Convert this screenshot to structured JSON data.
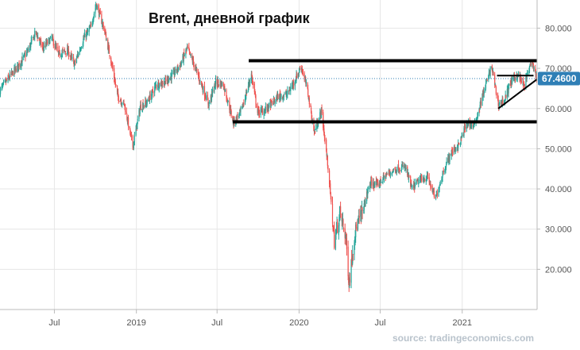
{
  "chart_data": {
    "type": "candlestick",
    "title": "Brent, дневной график",
    "source": "source: tradingeconomics.com",
    "y_axis_position": "right",
    "ylim": [
      10,
      87
    ],
    "xlim": [
      "2018-03-01",
      "2021-06-18"
    ],
    "grid": true,
    "y_ticks": [
      {
        "value": 80,
        "label": "80.000"
      },
      {
        "value": 70,
        "label": "70.000"
      },
      {
        "value": 60,
        "label": "60.000"
      },
      {
        "value": 50,
        "label": "50.000"
      },
      {
        "value": 40,
        "label": "40.000"
      },
      {
        "value": 30,
        "label": "30.000"
      },
      {
        "value": 20,
        "label": "20.000"
      }
    ],
    "x_ticks": [
      {
        "date": "2018-07-01",
        "label": "Jul"
      },
      {
        "date": "2019-01-01",
        "label": "2019"
      },
      {
        "date": "2019-07-01",
        "label": "Jul"
      },
      {
        "date": "2020-01-01",
        "label": "2020"
      },
      {
        "date": "2020-07-01",
        "label": "Jul"
      },
      {
        "date": "2021-01-01",
        "label": "2021"
      }
    ],
    "current_price": {
      "value": 67.46,
      "label": "67.4600"
    },
    "colors": {
      "up": "#26a69a",
      "down": "#ef5350",
      "price_label_bg": "#2f7fb6",
      "price_line": "#2f7fb6",
      "grid": "#e6e6e6",
      "annotation": "#000000"
    },
    "close_path": [
      [
        "2018-03-01",
        64.5
      ],
      [
        "2018-03-20",
        67.5
      ],
      [
        "2018-04-10",
        70.5
      ],
      [
        "2018-05-01",
        74.0
      ],
      [
        "2018-05-20",
        79.0
      ],
      [
        "2018-06-05",
        75.0
      ],
      [
        "2018-06-25",
        77.5
      ],
      [
        "2018-07-10",
        73.5
      ],
      [
        "2018-07-30",
        74.5
      ],
      [
        "2018-08-15",
        71.0
      ],
      [
        "2018-09-05",
        77.5
      ],
      [
        "2018-09-20",
        80.0
      ],
      [
        "2018-10-03",
        86.0
      ],
      [
        "2018-10-20",
        80.0
      ],
      [
        "2018-11-05",
        72.0
      ],
      [
        "2018-11-20",
        63.0
      ],
      [
        "2018-12-05",
        61.0
      ],
      [
        "2018-12-24",
        50.5
      ],
      [
        "2019-01-10",
        60.5
      ],
      [
        "2019-01-25",
        61.5
      ],
      [
        "2019-02-15",
        66.0
      ],
      [
        "2019-03-05",
        66.5
      ],
      [
        "2019-03-25",
        68.5
      ],
      [
        "2019-04-10",
        71.0
      ],
      [
        "2019-04-25",
        75.0
      ],
      [
        "2019-05-10",
        71.0
      ],
      [
        "2019-05-30",
        65.0
      ],
      [
        "2019-06-12",
        61.0
      ],
      [
        "2019-06-28",
        66.5
      ],
      [
        "2019-07-15",
        66.0
      ],
      [
        "2019-08-07",
        56.5
      ],
      [
        "2019-08-25",
        59.5
      ],
      [
        "2019-09-16",
        68.5
      ],
      [
        "2019-09-30",
        59.0
      ],
      [
        "2019-10-15",
        59.5
      ],
      [
        "2019-10-30",
        61.0
      ],
      [
        "2019-11-15",
        63.0
      ],
      [
        "2019-12-05",
        63.5
      ],
      [
        "2019-12-20",
        66.5
      ],
      [
        "2020-01-06",
        70.5
      ],
      [
        "2020-01-20",
        64.5
      ],
      [
        "2020-02-04",
        54.0
      ],
      [
        "2020-02-20",
        59.5
      ],
      [
        "2020-03-06",
        45.5
      ],
      [
        "2020-03-20",
        27.0
      ],
      [
        "2020-04-02",
        34.0
      ],
      [
        "2020-04-15",
        28.0
      ],
      [
        "2020-04-22",
        16.5
      ],
      [
        "2020-05-05",
        29.0
      ],
      [
        "2020-05-25",
        35.5
      ],
      [
        "2020-06-08",
        41.5
      ],
      [
        "2020-06-25",
        41.0
      ],
      [
        "2020-07-15",
        43.5
      ],
      [
        "2020-08-05",
        45.0
      ],
      [
        "2020-08-26",
        45.5
      ],
      [
        "2020-09-10",
        40.0
      ],
      [
        "2020-09-25",
        42.0
      ],
      [
        "2020-10-15",
        43.0
      ],
      [
        "2020-11-02",
        37.5
      ],
      [
        "2020-11-20",
        44.5
      ],
      [
        "2020-12-07",
        49.0
      ],
      [
        "2020-12-25",
        51.0
      ],
      [
        "2021-01-12",
        56.5
      ],
      [
        "2021-01-28",
        55.5
      ],
      [
        "2021-02-15",
        63.0
      ],
      [
        "2021-03-08",
        70.5
      ],
      [
        "2021-03-23",
        61.0
      ],
      [
        "2021-04-05",
        62.0
      ],
      [
        "2021-04-20",
        66.5
      ],
      [
        "2021-05-05",
        68.5
      ],
      [
        "2021-05-20",
        65.5
      ],
      [
        "2021-06-04",
        71.5
      ],
      [
        "2021-06-18",
        67.46
      ]
    ],
    "annotations": {
      "lines": [
        {
          "name": "resistance",
          "from": [
            "2019-09-10",
            71.9
          ],
          "to": [
            "2021-06-18",
            71.9
          ]
        },
        {
          "name": "support",
          "from": [
            "2019-08-05",
            56.7
          ],
          "to": [
            "2021-06-18",
            56.7
          ]
        },
        {
          "name": "short-resistance",
          "from": [
            "2021-03-20",
            68.2
          ],
          "to": [
            "2021-06-10",
            68.2
          ]
        },
        {
          "name": "rising-support",
          "from": [
            "2021-03-23",
            60.0
          ],
          "to": [
            "2021-06-18",
            67.3
          ]
        }
      ]
    }
  }
}
